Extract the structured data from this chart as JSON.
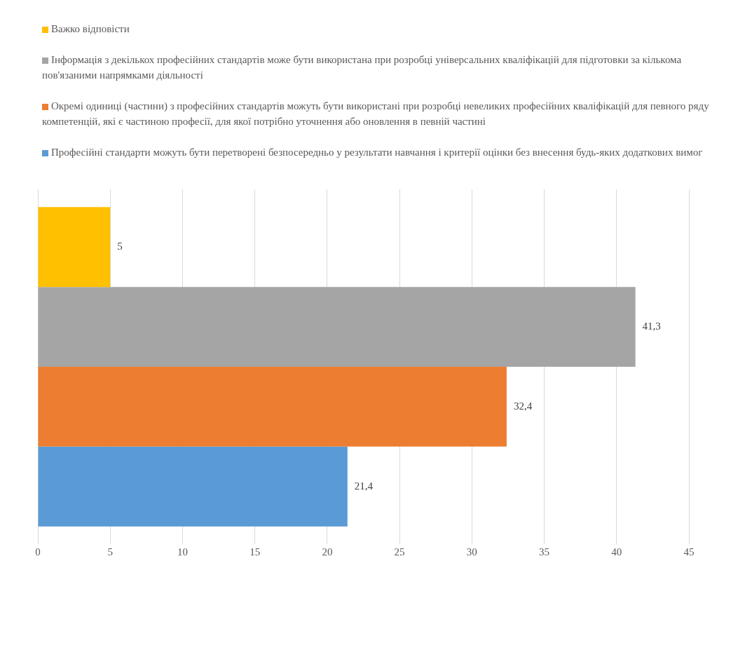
{
  "chart_data": {
    "type": "bar",
    "orientation": "horizontal",
    "categories": [
      null
    ],
    "series": [
      {
        "name": "Важко відповісти",
        "color": "#ffc000",
        "values": [
          5
        ],
        "value_labels": [
          "5"
        ]
      },
      {
        "name": "Інформація з декількох професійних стандартів може бути використана при розробці універсальних кваліфікацій для підготовки за кількома пов'язаними напрямками діяльності",
        "color": "#a5a5a5",
        "values": [
          41.3
        ],
        "value_labels": [
          "41,3"
        ]
      },
      {
        "name": "Окремі одиниці (частини) з професійних стандартів можуть бути використані при розробці невеликих професійних кваліфікацій для певного ряду компетенцій, які є частиною професії, для якої потрібно уточнення або оновлення в певній частині",
        "color": "#ed7d31",
        "values": [
          32.4
        ],
        "value_labels": [
          "32,4"
        ]
      },
      {
        "name": "Професійні стандарти можуть бути перетворені безпосередньо у результати навчання і критерії оцінки без внесення будь-яких додаткових вимог",
        "color": "#5b9bd5",
        "values": [
          21.4
        ],
        "value_labels": [
          "21,4"
        ]
      }
    ],
    "xlim": [
      0,
      45
    ],
    "xticks": [
      0,
      5,
      10,
      15,
      20,
      25,
      30,
      35,
      40,
      45
    ],
    "grid": "x",
    "legend": "top"
  }
}
